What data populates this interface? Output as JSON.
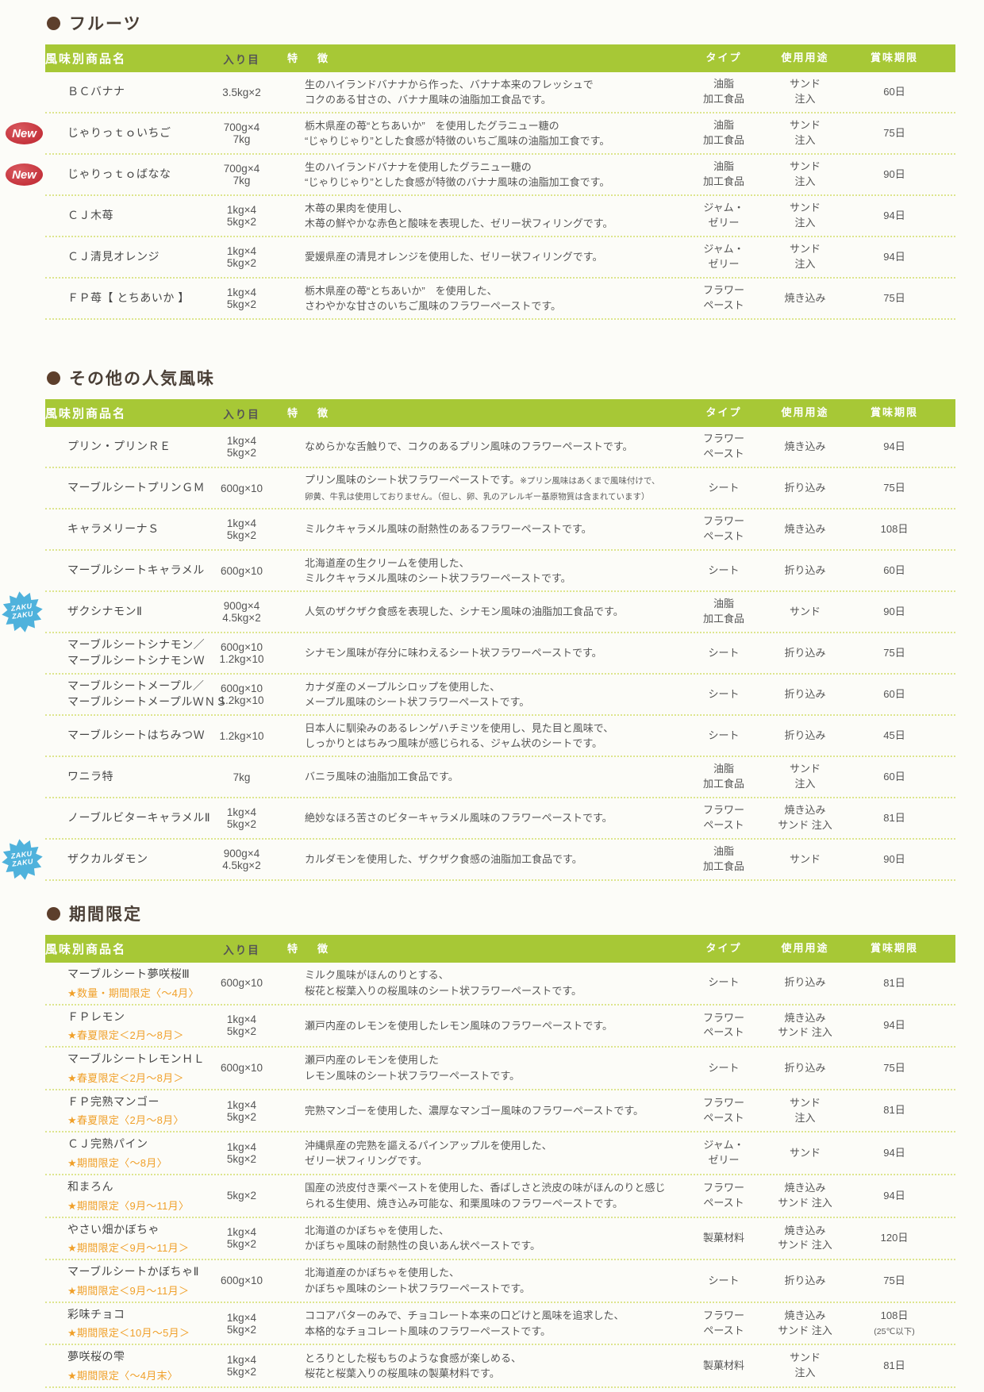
{
  "colors": {
    "header_green": "#a7c836",
    "dot_yellow": "#dde58e",
    "limited_orange": "#f0a02a",
    "bullet_brown": "#5d3f2c",
    "new_red": "#c5333c",
    "zaku_blue": "#4fb2dc"
  },
  "badges": {
    "new": [
      "New"
    ],
    "zaku": [
      "ZAKU",
      "ZAKU"
    ]
  },
  "sections": [
    {
      "title": "フルーツ",
      "headers": [
        "風味別商品名",
        "入り目",
        "特　徴",
        "タイプ",
        "使用用途",
        "賞味期限"
      ],
      "rows": [
        {
          "name_lines": [
            "ＢＣバナナ"
          ],
          "size_lines": [
            "3.5kg×2"
          ],
          "feature_lines": [
            "生のハイランドバナナから作った、バナナ本来のフレッシュで",
            "コクのある甘さの、バナナ風味の油脂加工食品です。"
          ],
          "type_lines": [
            "油脂",
            "加工食品"
          ],
          "usage_lines": [
            "サンド",
            "注入"
          ],
          "expiry_lines": [
            "60日"
          ]
        },
        {
          "badge": "new",
          "name_lines": [
            "じゃりっｔｏいちご"
          ],
          "size_lines": [
            "700g×4",
            "7kg"
          ],
          "feature_lines": [
            "栃木県産の苺“とちあいか”　を使用したグラニュー糖の",
            "“じゃりじゃり”とした食感が特徴のいちご風味の油脂加工食です。"
          ],
          "type_lines": [
            "油脂",
            "加工食品"
          ],
          "usage_lines": [
            "サンド",
            "注入"
          ],
          "expiry_lines": [
            "75日"
          ]
        },
        {
          "badge": "new",
          "name_lines": [
            "じゃりっｔｏばなな"
          ],
          "size_lines": [
            "700g×4",
            "7kg"
          ],
          "feature_lines": [
            "生のハイランドバナナを使用したグラニュー糖の",
            "“じゃりじゃり”とした食感が特徴のバナナ風味の油脂加工食です。"
          ],
          "type_lines": [
            "油脂",
            "加工食品"
          ],
          "usage_lines": [
            "サンド",
            "注入"
          ],
          "expiry_lines": [
            "90日"
          ]
        },
        {
          "name_lines": [
            "ＣＪ木苺"
          ],
          "size_lines": [
            "1kg×4",
            "5kg×2"
          ],
          "feature_lines": [
            "木苺の果肉を使用し、",
            "木苺の鮮やかな赤色と酸味を表現した、ゼリー状フィリングです。"
          ],
          "type_lines": [
            "ジャム・",
            "ゼリー"
          ],
          "usage_lines": [
            "サンド",
            "注入"
          ],
          "expiry_lines": [
            "94日"
          ]
        },
        {
          "name_lines": [
            "ＣＪ清見オレンジ"
          ],
          "size_lines": [
            "1kg×4",
            "5kg×2"
          ],
          "feature_lines": [
            "愛媛県産の清見オレンジを使用した、ゼリー状フィリングです。"
          ],
          "type_lines": [
            "ジャム・",
            "ゼリー"
          ],
          "usage_lines": [
            "サンド",
            "注入"
          ],
          "expiry_lines": [
            "94日"
          ]
        },
        {
          "name_lines": [
            "ＦＰ苺【 とちあいか 】"
          ],
          "size_lines": [
            "1kg×4",
            "5kg×2"
          ],
          "feature_lines": [
            "栃木県産の苺“とちあいか”　を使用した、",
            "さわやかな甘さのいちご風味のフラワーペーストです。"
          ],
          "type_lines": [
            "フラワー",
            "ペースト"
          ],
          "usage_lines": [
            "焼き込み"
          ],
          "expiry_lines": [
            "75日"
          ]
        }
      ]
    },
    {
      "title": "その他の人気風味",
      "headers": [
        "風味別商品名",
        "入り目",
        "特　徴",
        "タイプ",
        "使用用途",
        "賞味期限"
      ],
      "rows": [
        {
          "name_lines": [
            "プリン・プリンＲＥ"
          ],
          "size_lines": [
            "1kg×4",
            "5kg×2"
          ],
          "feature_lines": [
            "なめらかな舌触りで、コクのあるプリン風味のフラワーペーストです。"
          ],
          "type_lines": [
            "フラワー",
            "ペースト"
          ],
          "usage_lines": [
            "焼き込み"
          ],
          "expiry_lines": [
            "94日"
          ]
        },
        {
          "name_lines": [
            "マーブルシートプリンＧＭ"
          ],
          "size_lines": [
            "600g×10"
          ],
          "feature_lines": [
            [
              {
                "t": "プリン風味のシート状フラワーペーストです。"
              },
              {
                "t": "※プリン風味はあくまで風味付けで、",
                "small": true
              }
            ],
            [
              {
                "t": "卵黄、牛乳は使用しておりません。（但し、卵、乳のアレルギー基原物質は含まれています）",
                "small": true
              }
            ]
          ],
          "type_lines": [
            "シート"
          ],
          "usage_lines": [
            "折り込み"
          ],
          "expiry_lines": [
            "75日"
          ]
        },
        {
          "name_lines": [
            "キャラメリーナＳ"
          ],
          "size_lines": [
            "1kg×4",
            "5kg×2"
          ],
          "feature_lines": [
            "ミルクキャラメル風味の耐熱性のあるフラワーペーストです。"
          ],
          "type_lines": [
            "フラワー",
            "ペースト"
          ],
          "usage_lines": [
            "焼き込み"
          ],
          "expiry_lines": [
            "108日"
          ]
        },
        {
          "name_lines": [
            "マーブルシートキャラメル"
          ],
          "size_lines": [
            "600g×10"
          ],
          "feature_lines": [
            "北海道産の生クリームを使用した、",
            "ミルクキャラメル風味のシート状フラワーペーストです。"
          ],
          "type_lines": [
            "シート"
          ],
          "usage_lines": [
            "折り込み"
          ],
          "expiry_lines": [
            "60日"
          ]
        },
        {
          "badge": "zaku",
          "name_lines": [
            "ザクシナモンⅡ"
          ],
          "size_lines": [
            "900g×4",
            "4.5kg×2"
          ],
          "feature_lines": [
            "人気のザクザク食感を表現した、シナモン風味の油脂加工食品です。"
          ],
          "type_lines": [
            "油脂",
            "加工食品"
          ],
          "usage_lines": [
            "サンド"
          ],
          "expiry_lines": [
            "90日"
          ]
        },
        {
          "name_lines": [
            "マーブルシートシナモン／",
            "マーブルシートシナモンＷ"
          ],
          "size_lines": [
            "600g×10",
            "1.2kg×10"
          ],
          "feature_lines": [
            "シナモン風味が存分に味わえるシート状フラワーペーストです。"
          ],
          "type_lines": [
            "シート"
          ],
          "usage_lines": [
            "折り込み"
          ],
          "expiry_lines": [
            "75日"
          ]
        },
        {
          "name_lines": [
            "マーブルシートメープル／",
            "マーブルシートメープルＷＮＳ"
          ],
          "size_lines": [
            "600g×10",
            "1.2kg×10"
          ],
          "feature_lines": [
            "カナダ産のメープルシロップを使用した、",
            "メープル風味のシート状フラワーペーストです。"
          ],
          "type_lines": [
            "シート"
          ],
          "usage_lines": [
            "折り込み"
          ],
          "expiry_lines": [
            "60日"
          ]
        },
        {
          "name_lines": [
            "マーブルシートはちみつＷ"
          ],
          "size_lines": [
            "1.2kg×10"
          ],
          "feature_lines": [
            "日本人に馴染みのあるレンゲハチミツを使用し、見た目と風味で、",
            "しっかりとはちみつ風味が感じられる、ジャム状のシートです。"
          ],
          "type_lines": [
            "シート"
          ],
          "usage_lines": [
            "折り込み"
          ],
          "expiry_lines": [
            "45日"
          ]
        },
        {
          "name_lines": [
            "ワニラ特"
          ],
          "size_lines": [
            "7kg"
          ],
          "feature_lines": [
            "バニラ風味の油脂加工食品です。"
          ],
          "type_lines": [
            "油脂",
            "加工食品"
          ],
          "usage_lines": [
            "サンド",
            "注入"
          ],
          "expiry_lines": [
            "60日"
          ]
        },
        {
          "name_lines": [
            "ノーブルビターキャラメルⅡ"
          ],
          "size_lines": [
            "1kg×4",
            "5kg×2"
          ],
          "feature_lines": [
            "絶妙なほろ苦さのビターキャラメル風味のフラワーペーストです。"
          ],
          "type_lines": [
            "フラワー",
            "ペースト"
          ],
          "usage_lines": [
            "焼き込み",
            "サンド 注入"
          ],
          "expiry_lines": [
            "81日"
          ]
        },
        {
          "badge": "zaku",
          "name_lines": [
            "ザクカルダモン"
          ],
          "size_lines": [
            "900g×4",
            "4.5kg×2"
          ],
          "feature_lines": [
            "カルダモンを使用した、ザクザク食感の油脂加工食品です。"
          ],
          "type_lines": [
            "油脂",
            "加工食品"
          ],
          "usage_lines": [
            "サンド"
          ],
          "expiry_lines": [
            "90日"
          ]
        }
      ]
    },
    {
      "title": "期間限定",
      "headers": [
        "風味別商品名",
        "入り目",
        "特　徴",
        "タイプ",
        "使用用途",
        "賞味期限"
      ],
      "rows": [
        {
          "name_lines": [
            "マーブルシート夢咲桜Ⅲ"
          ],
          "limited": "★数量・期間限定〈～4月〉",
          "size_lines": [
            "600g×10"
          ],
          "feature_lines": [
            "ミルク風味がほんのりとする、",
            "桜花と桜葉入りの桜風味のシート状フラワーペーストです。"
          ],
          "type_lines": [
            "シート"
          ],
          "usage_lines": [
            "折り込み"
          ],
          "expiry_lines": [
            "81日"
          ]
        },
        {
          "name_lines": [
            "ＦＰレモン"
          ],
          "limited": "★春夏限定＜2月～8月＞",
          "size_lines": [
            "1kg×4",
            "5kg×2"
          ],
          "feature_lines": [
            "瀬戸内産のレモンを使用したレモン風味のフラワーペーストです。"
          ],
          "type_lines": [
            "フラワー",
            "ペースト"
          ],
          "usage_lines": [
            "焼き込み",
            "サンド 注入"
          ],
          "expiry_lines": [
            "94日"
          ]
        },
        {
          "name_lines": [
            "マーブルシートレモンＨＬ"
          ],
          "limited": "★春夏限定＜2月～8月＞",
          "size_lines": [
            "600g×10"
          ],
          "feature_lines": [
            "瀬戸内産のレモンを使用した",
            "レモン風味のシート状フラワーペーストです。"
          ],
          "type_lines": [
            "シート"
          ],
          "usage_lines": [
            "折り込み"
          ],
          "expiry_lines": [
            "75日"
          ]
        },
        {
          "name_lines": [
            "ＦＰ完熟マンゴー"
          ],
          "limited": "★春夏限定〈2月～8月〉",
          "size_lines": [
            "1kg×4",
            "5kg×2"
          ],
          "feature_lines": [
            "完熟マンゴーを使用した、濃厚なマンゴー風味のフラワーペーストです。"
          ],
          "type_lines": [
            "フラワー",
            "ペースト"
          ],
          "usage_lines": [
            "サンド",
            "注入"
          ],
          "expiry_lines": [
            "81日"
          ]
        },
        {
          "name_lines": [
            "ＣＪ完熟パイン"
          ],
          "limited": "★期間限定〈～8月〉",
          "size_lines": [
            "1kg×4",
            "5kg×2"
          ],
          "feature_lines": [
            "沖縄県産の完熟を謳えるパインアップルを使用した、",
            "ゼリー状フィリングです。"
          ],
          "type_lines": [
            "ジャム・",
            "ゼリー"
          ],
          "usage_lines": [
            "サンド"
          ],
          "expiry_lines": [
            "94日"
          ]
        },
        {
          "name_lines": [
            "和まろん"
          ],
          "limited": "★期間限定〈9月～11月〉",
          "size_lines": [
            "5kg×2"
          ],
          "feature_lines": [
            "国産の渋皮付き栗ペーストを使用した、香ばしさと渋皮の味がほんのりと感じ",
            "られる生使用、焼き込み可能な、和栗風味のフラワーペーストです。"
          ],
          "type_lines": [
            "フラワー",
            "ペースト"
          ],
          "usage_lines": [
            "焼き込み",
            "サンド 注入"
          ],
          "expiry_lines": [
            "94日"
          ]
        },
        {
          "name_lines": [
            "やさい畑かぼちゃ"
          ],
          "limited": "★期間限定＜9月～11月＞",
          "size_lines": [
            "1kg×4",
            "5kg×2"
          ],
          "feature_lines": [
            "北海道のかぼちゃを使用した、",
            "かぼちゃ風味の耐熱性の良いあん状ペーストです。"
          ],
          "type_lines": [
            "製菓材料"
          ],
          "usage_lines": [
            "焼き込み",
            "サンド 注入"
          ],
          "expiry_lines": [
            "120日"
          ]
        },
        {
          "name_lines": [
            "マーブルシートかぼちゃⅡ"
          ],
          "limited": "★期間限定＜9月～11月＞",
          "size_lines": [
            "600g×10"
          ],
          "feature_lines": [
            "北海道産のかぼちゃを使用した、",
            "かぼちゃ風味のシート状フラワーペーストです。"
          ],
          "type_lines": [
            "シート"
          ],
          "usage_lines": [
            "折り込み"
          ],
          "expiry_lines": [
            "75日"
          ]
        },
        {
          "name_lines": [
            "彩味チョコ"
          ],
          "limited": "★期間限定＜10月～5月＞",
          "size_lines": [
            "1kg×4",
            "5kg×2"
          ],
          "feature_lines": [
            "ココアバターのみで、チョコレート本来の口どけと風味を追求した、",
            "本格的なチョコレート風味のフラワーペーストです。"
          ],
          "type_lines": [
            "フラワー",
            "ペースト"
          ],
          "usage_lines": [
            "焼き込み",
            "サンド 注入"
          ],
          "expiry_lines": [
            "108日",
            {
              "t": "(25℃以下)",
              "small": true
            }
          ]
        },
        {
          "name_lines": [
            "夢咲桜の雫"
          ],
          "limited": "★期間限定〈～4月末〉",
          "size_lines": [
            "1kg×4",
            "5kg×2"
          ],
          "feature_lines": [
            "とろりとした桜もちのような食感が楽しめる、",
            "桜花と桜葉入りの桜風味の製菓材料です。"
          ],
          "type_lines": [
            "製菓材料"
          ],
          "usage_lines": [
            "サンド",
            "注入"
          ],
          "expiry_lines": [
            "81日"
          ]
        }
      ]
    }
  ]
}
